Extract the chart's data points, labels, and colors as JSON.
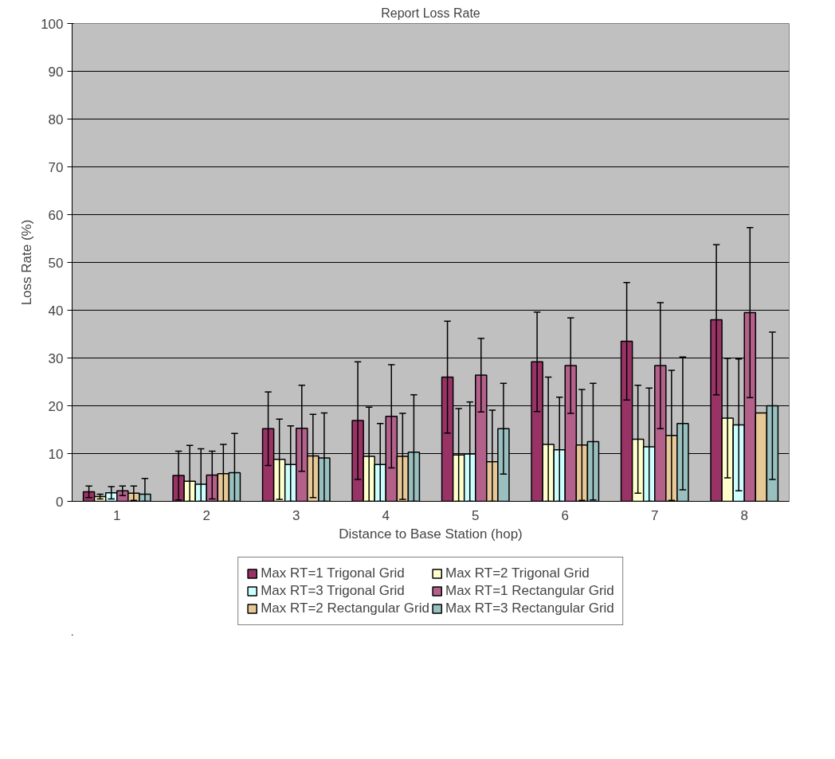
{
  "chart_data": {
    "type": "bar",
    "title": "Report Loss Rate",
    "xlabel": "Distance to Base Station (hop)",
    "ylabel": "Loss Rate (%)",
    "categories": [
      "1",
      "2",
      "3",
      "4",
      "5",
      "6",
      "7",
      "8"
    ],
    "ylim": [
      0,
      100
    ],
    "yticks": [
      0,
      10,
      20,
      30,
      40,
      50,
      60,
      70,
      80,
      90,
      100
    ],
    "grid": "y",
    "legend": "bottom",
    "series": [
      {
        "name": "Max RT=1 Trigonal Grid",
        "color": "#993366",
        "values": [
          2,
          5.4,
          15.2,
          16.9,
          26,
          29.2,
          33.5,
          38
        ],
        "errors": [
          1.2,
          5.1,
          7.7,
          12.3,
          11.7,
          10.4,
          12.3,
          15.7
        ]
      },
      {
        "name": "Max RT=2 Trigonal Grid",
        "color": "#ffffcc",
        "values": [
          1,
          4.2,
          8.8,
          9.4,
          9.7,
          11.9,
          13,
          17.4
        ],
        "errors": [
          0.5,
          [
            0,
            11.7
          ],
          8.4,
          [
            0,
            19.7
          ],
          9.7,
          [
            0,
            26
          ],
          11.3,
          12.5
        ]
      },
      {
        "name": "Max RT=3 Trigonal Grid",
        "color": "#ccffff",
        "values": [
          1.8,
          3.6,
          7.7,
          7.7,
          9.9,
          10.8,
          11.4,
          16
        ],
        "errors": [
          [
            0.5,
            3.1
          ],
          [
            0,
            11
          ],
          [
            0,
            15.8
          ],
          [
            0,
            16.3
          ],
          [
            0,
            20.8
          ],
          [
            0,
            21.8
          ],
          [
            0,
            23.7
          ],
          13.8
        ]
      },
      {
        "name": "Max RT=1 Rectangular Grid",
        "color": "#b3608a",
        "values": [
          2.2,
          5.5,
          15.3,
          17.8,
          26.4,
          28.4,
          28.4,
          39.5
        ],
        "errors": [
          1,
          5,
          9,
          10.8,
          7.7,
          10,
          13.2,
          17.8
        ]
      },
      {
        "name": "Max RT=2 Rectangular Grid",
        "color": "#e6c896",
        "values": [
          1.7,
          5.8,
          9.5,
          9.4,
          8.3,
          11.8,
          13.8,
          18.5
        ],
        "errors": [
          1.5,
          [
            0,
            11.9
          ],
          8.7,
          9,
          [
            0,
            19.1
          ],
          11.6,
          13.6,
          null
        ]
      },
      {
        "name": "Max RT=3 Rectangular Grid",
        "color": "#99bfbf",
        "values": [
          1.5,
          6,
          9.1,
          10.3,
          15.2,
          12.5,
          16.3,
          20
        ],
        "errors": [
          [
            0,
            4.8
          ],
          [
            0,
            14.2
          ],
          [
            0,
            18.5
          ],
          [
            0,
            22.3
          ],
          9.5,
          12.2,
          13.9,
          15.4
        ]
      }
    ]
  }
}
